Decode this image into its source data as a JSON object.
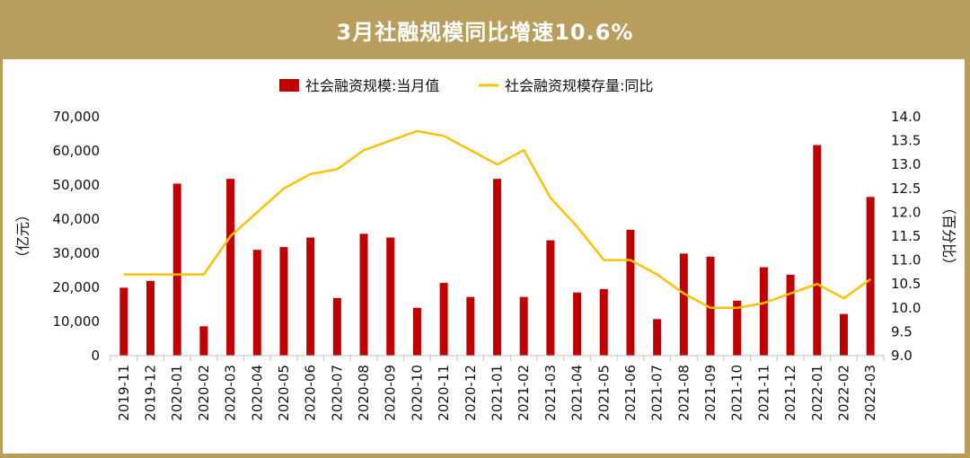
{
  "page": {
    "title": "3月社融规模同比增速10.6%"
  },
  "colors": {
    "header_bg": "#b89d5c",
    "bar": "#c00000",
    "line": "#ffc000"
  },
  "chart_data": {
    "type": "bar",
    "title": "3月社融规模同比增速10.6%",
    "categories": [
      "2019-11",
      "2019-12",
      "2020-01",
      "2020-02",
      "2020-03",
      "2020-04",
      "2020-05",
      "2020-06",
      "2020-07",
      "2020-08",
      "2020-09",
      "2020-10",
      "2020-11",
      "2020-12",
      "2021-01",
      "2021-02",
      "2021-03",
      "2021-04",
      "2021-05",
      "2021-06",
      "2021-07",
      "2021-08",
      "2021-09",
      "2021-10",
      "2021-11",
      "2021-12",
      "2022-01",
      "2022-02",
      "2022-03"
    ],
    "series": [
      {
        "name": "社会融资规模:当月值",
        "type": "bar",
        "axis": "left",
        "values": [
          19900,
          21900,
          50400,
          8600,
          51800,
          31000,
          31800,
          34600,
          16900,
          35700,
          34600,
          14000,
          21300,
          17200,
          51800,
          17200,
          33800,
          18500,
          19500,
          36900,
          10700,
          29900,
          29000,
          16100,
          25900,
          23700,
          61700,
          12200,
          46500
        ]
      },
      {
        "name": "社会融资规模存量:同比",
        "type": "line",
        "axis": "right",
        "values": [
          10.7,
          10.7,
          10.7,
          10.7,
          11.5,
          12.0,
          12.5,
          12.8,
          12.9,
          13.3,
          13.5,
          13.7,
          13.6,
          13.3,
          13.0,
          13.3,
          12.3,
          11.7,
          11.0,
          11.0,
          10.7,
          10.3,
          10.0,
          10.0,
          10.1,
          10.3,
          10.5,
          10.2,
          10.6
        ]
      }
    ],
    "ylabel_left": "（亿元）",
    "ylabel_right": "（百分比）",
    "ylim_left": [
      0,
      70000
    ],
    "ylim_right": [
      9.0,
      14.0
    ],
    "yticks_left": [
      "0",
      "10,000",
      "20,000",
      "30,000",
      "40,000",
      "50,000",
      "60,000",
      "70,000"
    ],
    "yticks_right": [
      "9.0",
      "9.5",
      "10.0",
      "10.5",
      "11.0",
      "11.5",
      "12.0",
      "12.5",
      "13.0",
      "13.5",
      "14.0"
    ],
    "grid": false,
    "legend_position": "top-center"
  }
}
